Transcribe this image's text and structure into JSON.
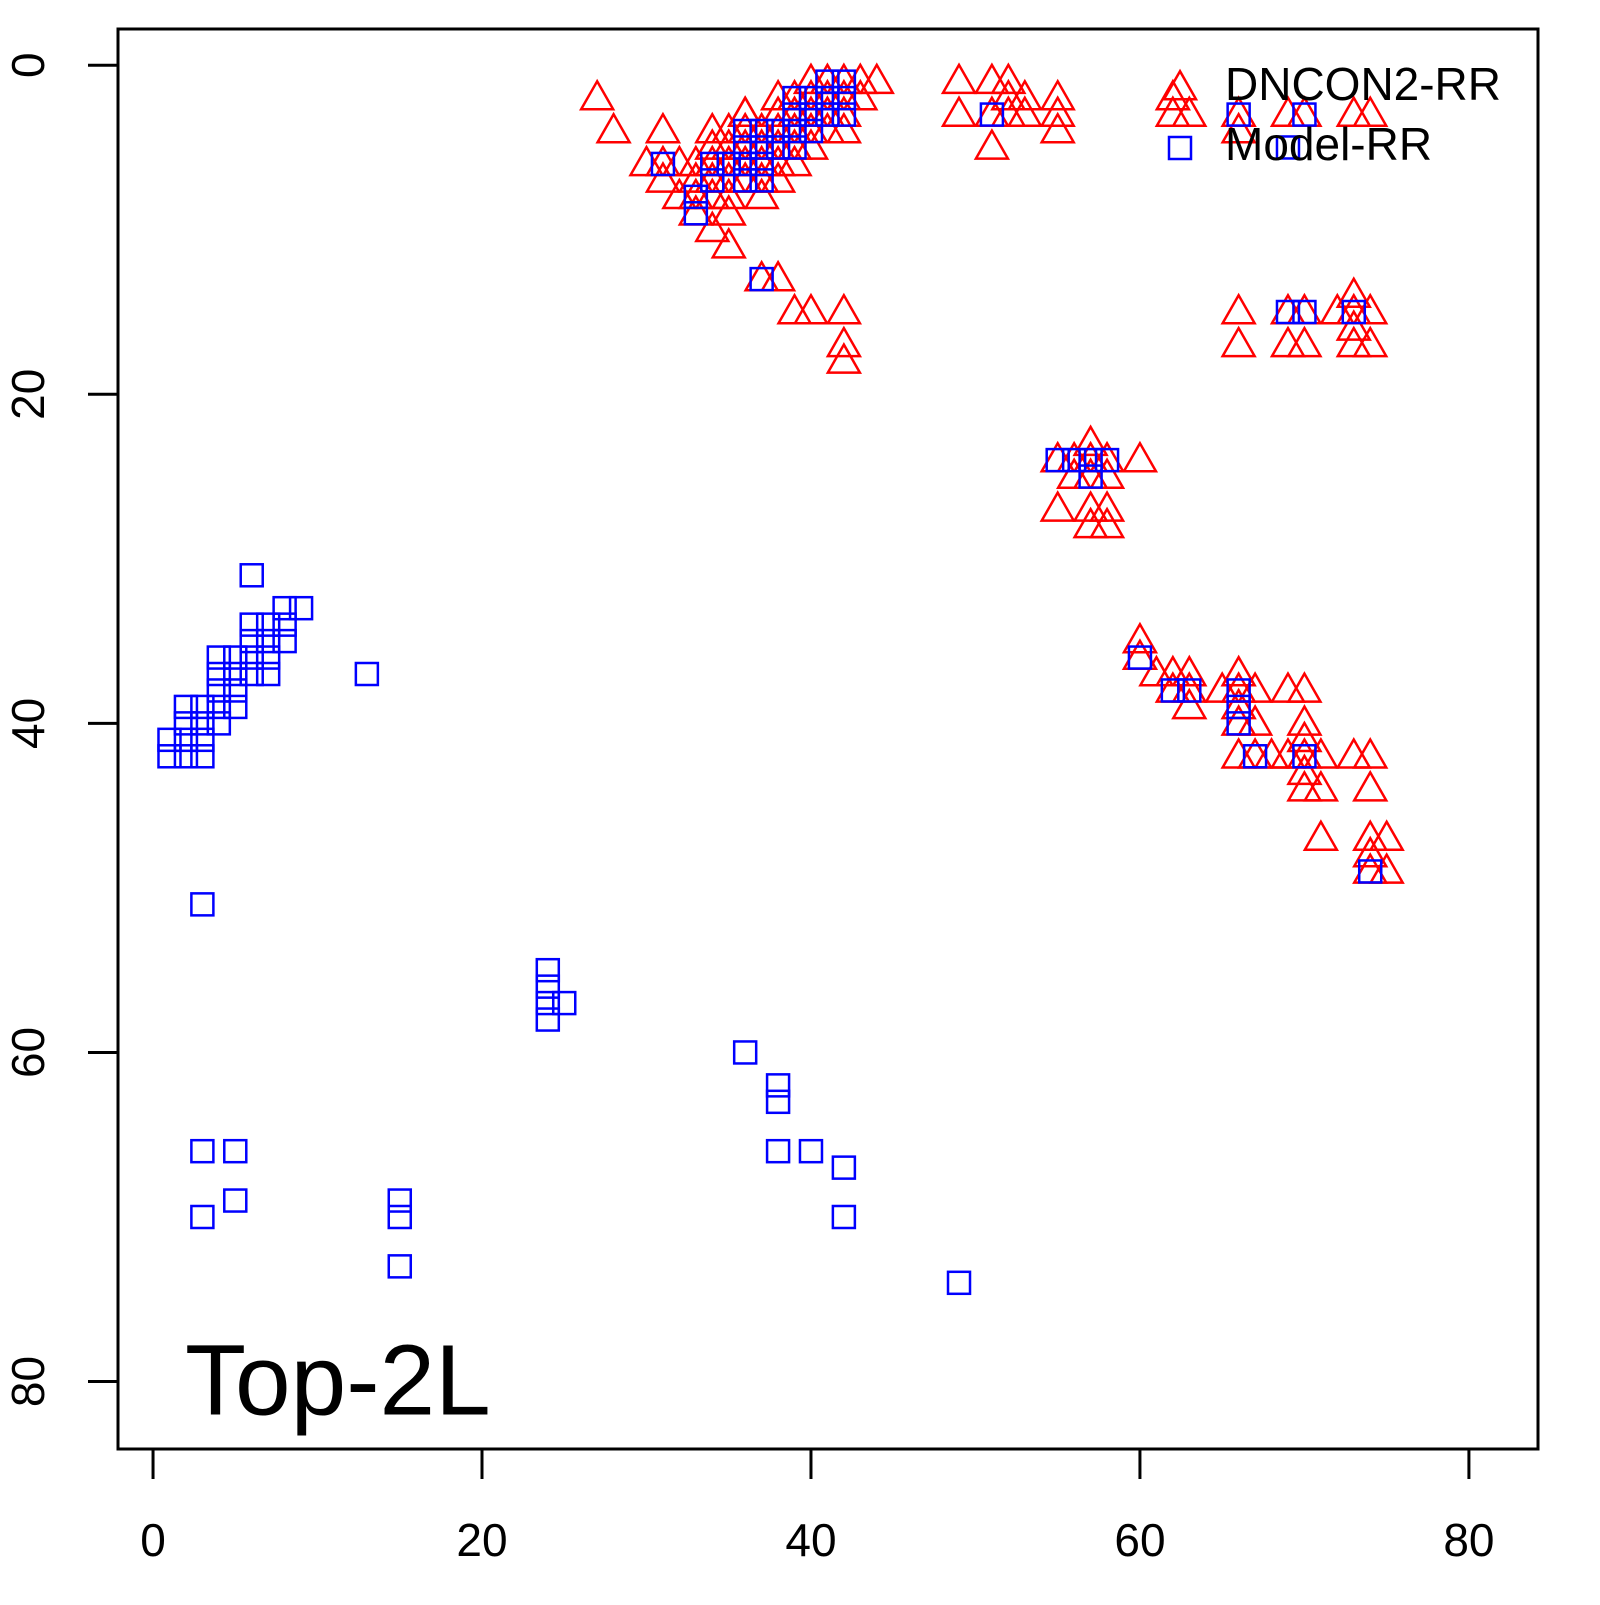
{
  "chart_data": {
    "type": "scatter",
    "annotation": "Top-2L",
    "xlim": [
      -2.13,
      84.2
    ],
    "ylim": [
      -2.2,
      84.1
    ],
    "y_inverted": true,
    "xticks": [
      0,
      20,
      40,
      60,
      80
    ],
    "yticks": [
      0,
      20,
      40,
      60,
      80
    ],
    "legend": "top-right",
    "series": [
      {
        "name": "DNCON2-RR",
        "color": "#ff0000",
        "marker": "triangle",
        "x": [
          27,
          28,
          31,
          30,
          31,
          31,
          32,
          32,
          33,
          33,
          33,
          33,
          34,
          34,
          34,
          34,
          34,
          34,
          35,
          35,
          35,
          35,
          35,
          35,
          35,
          36,
          36,
          36,
          36,
          36,
          36,
          37,
          37,
          37,
          37,
          37,
          37,
          38,
          38,
          38,
          38,
          38,
          38,
          38,
          39,
          39,
          39,
          39,
          39,
          39,
          40,
          40,
          40,
          40,
          40,
          40,
          41,
          41,
          41,
          41,
          42,
          42,
          42,
          42,
          42,
          42,
          42,
          43,
          43,
          44,
          49,
          49,
          51,
          51,
          51,
          52,
          52,
          52,
          53,
          53,
          55,
          55,
          55,
          55,
          55,
          56,
          56,
          57,
          57,
          57,
          57,
          57,
          58,
          58,
          58,
          58,
          60,
          60,
          60,
          61,
          62,
          62,
          63,
          63,
          63,
          65,
          66,
          66,
          66,
          66,
          66,
          66,
          66,
          66,
          66,
          67,
          67,
          67,
          68,
          69,
          69,
          69,
          69,
          69,
          70,
          70,
          70,
          70,
          70,
          70,
          70,
          70,
          70,
          71,
          71,
          71,
          72,
          73,
          73,
          73,
          73,
          73,
          73,
          74,
          74,
          74,
          74,
          74,
          74,
          74,
          74,
          75,
          75,
          62,
          62,
          63
        ],
        "y": [
          2,
          4,
          4,
          6,
          6,
          7,
          6,
          8,
          6,
          7,
          8,
          9,
          4,
          5,
          6,
          7,
          8,
          10,
          4,
          5,
          6,
          7,
          8,
          9,
          11,
          3,
          4,
          5,
          6,
          7,
          3,
          4,
          5,
          6,
          7,
          8,
          13,
          2,
          3,
          4,
          5,
          6,
          7,
          13,
          2,
          3,
          4,
          5,
          6,
          15,
          1,
          2,
          3,
          4,
          5,
          15,
          1,
          2,
          3,
          4,
          1,
          2,
          3,
          4,
          15,
          17,
          18,
          1,
          2,
          1,
          1,
          3,
          1,
          3,
          5,
          1,
          2,
          3,
          2,
          3,
          2,
          4,
          3,
          24,
          27,
          24,
          25,
          23,
          24,
          25,
          27,
          28,
          24,
          25,
          27,
          28,
          24,
          35,
          36,
          37,
          37,
          38,
          37,
          38,
          39,
          38,
          37,
          38,
          39,
          40,
          42,
          3,
          4,
          15,
          17,
          38,
          40,
          42,
          42,
          38,
          42,
          3,
          15,
          17,
          38,
          40,
          41,
          42,
          43,
          44,
          3,
          15,
          17,
          42,
          44,
          47,
          15,
          14,
          15,
          16,
          17,
          42,
          3,
          3,
          15,
          17,
          42,
          44,
          47,
          48,
          49,
          47,
          49,
          2,
          3,
          3
        ]
      },
      {
        "name": "Model-RR",
        "color": "#0000ff",
        "marker": "square",
        "x": [
          6,
          6,
          7,
          8,
          9,
          8,
          8,
          7,
          6,
          6,
          7,
          5,
          4,
          4,
          5,
          6,
          7,
          13,
          4,
          5,
          4,
          5,
          2,
          3,
          3,
          2,
          4,
          2,
          1,
          3,
          1,
          2,
          3,
          3,
          24,
          24,
          24,
          25,
          24,
          36,
          38,
          38,
          3,
          5,
          38,
          40,
          42,
          5,
          15,
          3,
          15,
          42,
          15,
          49,
          31,
          33,
          33,
          34,
          34,
          35,
          36,
          36,
          36,
          36,
          37,
          37,
          37,
          37,
          38,
          38,
          39,
          39,
          39,
          39,
          40,
          40,
          40,
          41,
          41,
          41,
          42,
          42,
          42,
          37,
          51,
          66,
          70,
          69,
          69,
          70,
          73,
          55,
          56,
          57,
          58,
          57,
          60,
          62,
          63,
          66,
          66,
          66,
          67,
          70,
          74
        ],
        "y": [
          31,
          34,
          34,
          33,
          33,
          34,
          35,
          35,
          35,
          36,
          36,
          36,
          36,
          37,
          37,
          37,
          37,
          37,
          38,
          38,
          39,
          39,
          39,
          39,
          40,
          40,
          40,
          41,
          41,
          41,
          42,
          42,
          42,
          51,
          55,
          56,
          57,
          57,
          58,
          60,
          62,
          63,
          66,
          66,
          66,
          66,
          67,
          69,
          69,
          70,
          70,
          70,
          73,
          74,
          6,
          8,
          9,
          6,
          7,
          6,
          4,
          5,
          6,
          7,
          4,
          5,
          6,
          7,
          4,
          5,
          2,
          3,
          4,
          5,
          2,
          3,
          4,
          1,
          2,
          3,
          1,
          2,
          3,
          13,
          3,
          3,
          3,
          5,
          15,
          15,
          15,
          24,
          24,
          24,
          24,
          25,
          36,
          38,
          38,
          38,
          39,
          40,
          42,
          42,
          49
        ]
      }
    ]
  }
}
